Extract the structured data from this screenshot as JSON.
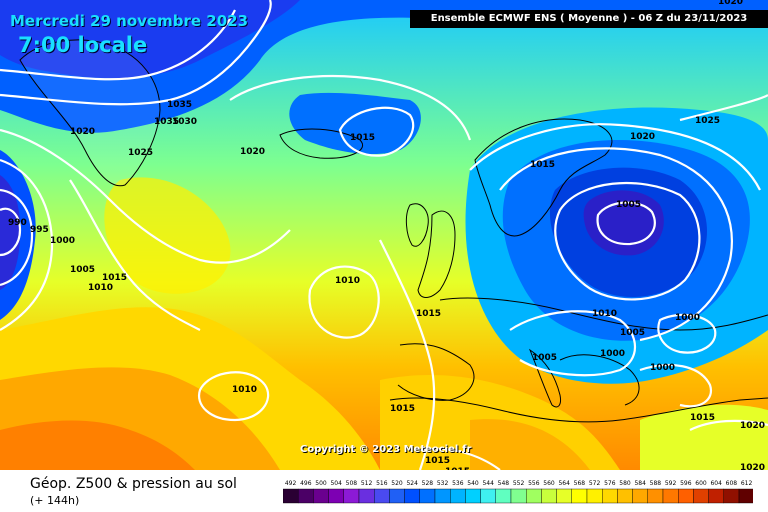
{
  "header": {
    "date": "Mercredi 29 novembre 2023",
    "time": "7:00 locale",
    "model": "Ensemble ECMWF ENS  ( Moyenne )  -  06 Z du 23/11/2023"
  },
  "copyright": "Copyright © 2023 Meteociel.fr",
  "footer": {
    "title": "Géop. Z500 & pression au sol",
    "subtitle": "(+ 144h)"
  },
  "isobar_labels": [
    "1035",
    "1035",
    "1030",
    "1025",
    "1020",
    "990",
    "995",
    "1000",
    "1005",
    "1010",
    "1015",
    "1020",
    "1015",
    "1010",
    "1015",
    "1010",
    "1015",
    "1015",
    "1020",
    "1025",
    "1020",
    "1005",
    "1010",
    "1005",
    "1005",
    "1000",
    "1000",
    "1000",
    "1015",
    "1020",
    "1020",
    "1015",
    "1015"
  ],
  "scale": {
    "labels": [
      "492",
      "496",
      "500",
      "504",
      "508",
      "512",
      "516",
      "520",
      "524",
      "528",
      "532",
      "536",
      "540",
      "544",
      "548",
      "552",
      "556",
      "560",
      "564",
      "568",
      "572",
      "576",
      "580",
      "584",
      "588",
      "592",
      "596",
      "600",
      "604",
      "608",
      "612"
    ],
    "colors": [
      "#2a0033",
      "#4b0066",
      "#6a008f",
      "#7d00b3",
      "#8c1ad6",
      "#6a2fe0",
      "#4a4af0",
      "#2060f5",
      "#0050ff",
      "#0070ff",
      "#0096ff",
      "#00b4ff",
      "#00d0ff",
      "#3ff0f0",
      "#60ffc0",
      "#80ff90",
      "#a0ff60",
      "#c8ff3c",
      "#e6ff28",
      "#ffff00",
      "#fff000",
      "#ffd800",
      "#ffc000",
      "#ffa800",
      "#ff9000",
      "#ff7800",
      "#ff6000",
      "#e04000",
      "#c02000",
      "#901000",
      "#600000"
    ]
  }
}
